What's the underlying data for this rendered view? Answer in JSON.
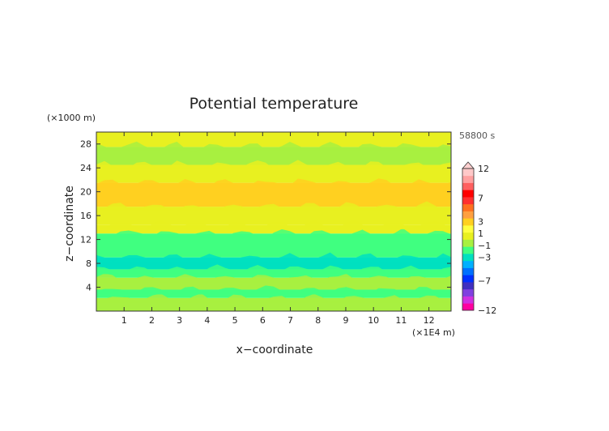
{
  "chart_data": {
    "type": "heatmap",
    "title": "Potential temperature",
    "xlabel": "x−coordinate",
    "ylabel": "z−coordinate",
    "x_unit": "(×1E4 m)",
    "y_unit": "(×1000 m)",
    "time_label": "58800 s",
    "xlim": [
      0,
      12.8
    ],
    "ylim": [
      0,
      30
    ],
    "x_ticks": [
      "1",
      "2",
      "3",
      "4",
      "5",
      "6",
      "7",
      "8",
      "9",
      "10",
      "11",
      "12"
    ],
    "y_ticks": [
      "4",
      "8",
      "12",
      "16",
      "20",
      "24",
      "28"
    ],
    "grid": false,
    "bands": [
      {
        "z_bottom": 0.0,
        "z_top": 2.2,
        "value": -0.5
      },
      {
        "z_bottom": 2.2,
        "z_top": 3.6,
        "value": -1.5
      },
      {
        "z_bottom": 3.6,
        "z_top": 5.6,
        "value": -0.5
      },
      {
        "z_bottom": 5.6,
        "z_top": 7.0,
        "value": -1.5
      },
      {
        "z_bottom": 7.0,
        "z_top": 9.0,
        "value": -2.5
      },
      {
        "z_bottom": 9.0,
        "z_top": 13.0,
        "value": -1.5
      },
      {
        "z_bottom": 13.0,
        "z_top": 14.5,
        "value": 0.5
      },
      {
        "z_bottom": 14.5,
        "z_top": 17.5,
        "value": 0.5
      },
      {
        "z_bottom": 17.5,
        "z_top": 21.5,
        "value": 2.5
      },
      {
        "z_bottom": 21.5,
        "z_top": 24.5,
        "value": 0.5
      },
      {
        "z_bottom": 24.5,
        "z_top": 27.5,
        "value": -0.5
      },
      {
        "z_bottom": 27.5,
        "z_top": 30.0,
        "value": 0.5
      }
    ],
    "colorbar": {
      "labels": [
        "12",
        "7",
        "3",
        "1",
        "−1",
        "−3",
        "−7",
        "−12"
      ],
      "colors": [
        "#ff00a0",
        "#d030e0",
        "#8040e0",
        "#4030c0",
        "#0030ff",
        "#0070ff",
        "#00b0ff",
        "#00e0c0",
        "#40ff80",
        "#a8f040",
        "#e8f020",
        "#ffff40",
        "#ffd020",
        "#ffa040",
        "#ff7020",
        "#ff3030",
        "#ff0000",
        "#ff6060",
        "#ffa0a0",
        "#ffc8c8"
      ],
      "extend_top": true
    }
  }
}
